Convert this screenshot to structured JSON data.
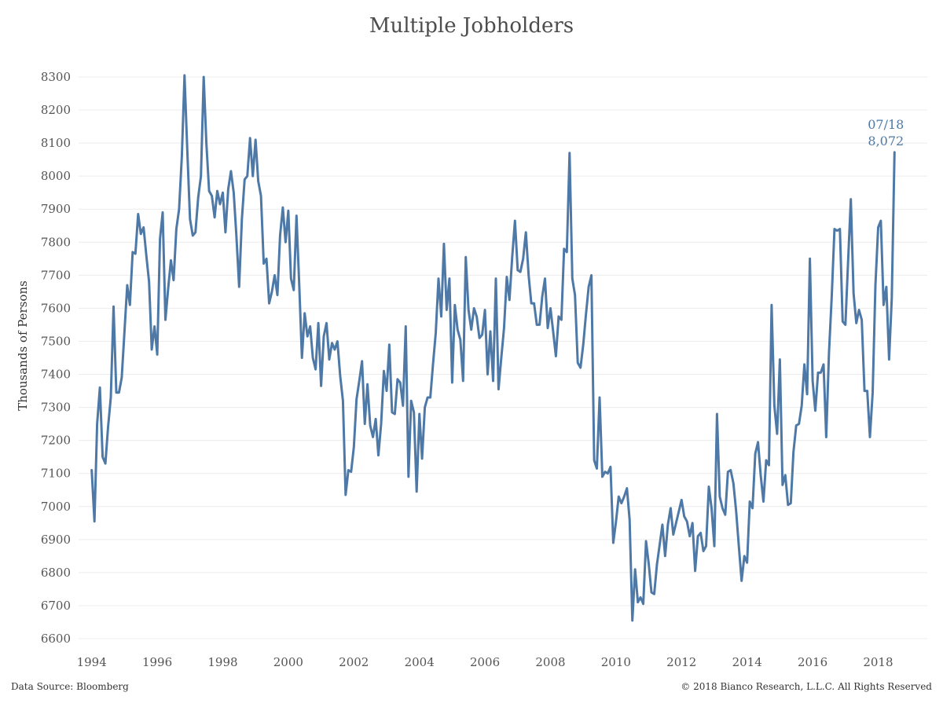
{
  "title": "Multiple Jobholders",
  "footer": {
    "source": "Data Source: Bloomberg",
    "copyright": "© 2018 Bianco Research, L.L.C. All Rights Reserved"
  },
  "colors": {
    "line": "#4e79a7",
    "grid": "#ececec",
    "axis_text": "#555555"
  },
  "chart_data": {
    "type": "line",
    "title": "Multiple Jobholders",
    "xlabel": "",
    "ylabel": "Thousands of Persons",
    "ylim": [
      6600,
      8300
    ],
    "xlim": [
      1993.6,
      2019.5
    ],
    "yticks": [
      6600,
      6700,
      6800,
      6900,
      7000,
      7100,
      7200,
      7300,
      7400,
      7500,
      7600,
      7700,
      7800,
      7900,
      8000,
      8100,
      8200,
      8300
    ],
    "xticks": [
      "1994",
      "1996",
      "1998",
      "2000",
      "2002",
      "2004",
      "2006",
      "2008",
      "2010",
      "2012",
      "2014",
      "2016",
      "2018"
    ],
    "grid": "horizontal",
    "annotation": {
      "date": "07/18",
      "value": "8,072"
    },
    "series": [
      {
        "frequency": "monthly",
        "start": "1994-01",
        "values": [
          7110,
          6955,
          7250,
          7360,
          7150,
          7130,
          7240,
          7330,
          7605,
          7345,
          7345,
          7390,
          7530,
          7670,
          7610,
          7770,
          7765,
          7885,
          7825,
          7845,
          7760,
          7680,
          7475,
          7545,
          7460,
          7810,
          7890,
          7565,
          7660,
          7745,
          7685,
          7840,
          7900,
          8060,
          8305,
          8080,
          7870,
          7820,
          7830,
          7935,
          8000,
          8300,
          8100,
          7955,
          7940,
          7875,
          7955,
          7915,
          7950,
          7830,
          7960,
          8015,
          7950,
          7820,
          7665,
          7870,
          7990,
          8000,
          8115,
          8000,
          8110,
          7985,
          7940,
          7735,
          7750,
          7615,
          7650,
          7700,
          7640,
          7820,
          7905,
          7800,
          7895,
          7690,
          7655,
          7880,
          7670,
          7450,
          7585,
          7515,
          7545,
          7450,
          7415,
          7555,
          7365,
          7515,
          7555,
          7445,
          7495,
          7475,
          7500,
          7395,
          7320,
          7035,
          7110,
          7105,
          7180,
          7325,
          7380,
          7440,
          7250,
          7370,
          7245,
          7210,
          7265,
          7155,
          7250,
          7410,
          7350,
          7490,
          7285,
          7280,
          7385,
          7375,
          7305,
          7545,
          7090,
          7320,
          7285,
          7045,
          7280,
          7145,
          7300,
          7330,
          7330,
          7430,
          7525,
          7690,
          7575,
          7795,
          7595,
          7690,
          7375,
          7610,
          7535,
          7505,
          7380,
          7755,
          7595,
          7535,
          7600,
          7575,
          7510,
          7520,
          7595,
          7400,
          7530,
          7380,
          7690,
          7355,
          7450,
          7540,
          7695,
          7625,
          7755,
          7865,
          7715,
          7710,
          7750,
          7830,
          7700,
          7615,
          7615,
          7550,
          7550,
          7635,
          7690,
          7540,
          7600,
          7530,
          7455,
          7575,
          7565,
          7780,
          7770,
          8070,
          7690,
          7640,
          7435,
          7420,
          7490,
          7580,
          7665,
          7700,
          7140,
          7115,
          7330,
          7090,
          7105,
          7100,
          7120,
          6890,
          6955,
          7030,
          7010,
          7030,
          7055,
          6960,
          6655,
          6810,
          6710,
          6725,
          6705,
          6895,
          6825,
          6740,
          6735,
          6825,
          6885,
          6945,
          6850,
          6945,
          6995,
          6915,
          6950,
          6985,
          7020,
          6970,
          6955,
          6910,
          6950,
          6805,
          6910,
          6920,
          6865,
          6880,
          7060,
          6995,
          6880,
          7280,
          7030,
          6995,
          6975,
          7105,
          7110,
          7070,
          6985,
          6880,
          6775,
          6850,
          6830,
          7015,
          6995,
          7160,
          7195,
          7095,
          7015,
          7140,
          7125,
          7610,
          7305,
          7220,
          7445,
          7065,
          7095,
          7005,
          7010,
          7165,
          7245,
          7250,
          7305,
          7430,
          7340,
          7750,
          7380,
          7290,
          7405,
          7405,
          7430,
          7210,
          7465,
          7635,
          7840,
          7835,
          7840,
          7560,
          7550,
          7740,
          7930,
          7645,
          7555,
          7595,
          7565,
          7350,
          7350,
          7210,
          7345,
          7670,
          7845,
          7865,
          7610,
          7665,
          7445,
          7630,
          8072
        ]
      }
    ]
  }
}
